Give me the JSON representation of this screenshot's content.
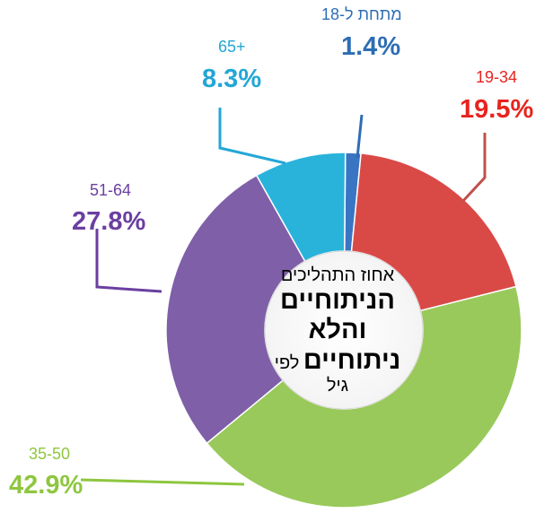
{
  "chart_data": {
    "type": "pie",
    "variant": "donut",
    "title_parts": {
      "line1": "אחוז התהליכים",
      "line2": "הניתוחיים",
      "line3": "והלא",
      "line4_bold": "ניתוחיים",
      "line4_regular": "לפי",
      "line5": "גיל"
    },
    "slices": [
      {
        "label": "מתחת ל-18",
        "value": 1.4,
        "value_label": "1.4%",
        "color": "#3a75c4"
      },
      {
        "label": "19-34",
        "value": 19.5,
        "value_label": "19.5%",
        "color": "#d94a47"
      },
      {
        "label": "35-50",
        "value": 42.9,
        "value_label": "42.9%",
        "color": "#99c95b"
      },
      {
        "label": "51-64",
        "value": 27.8,
        "value_label": "27.8%",
        "color": "#7f5fa8"
      },
      {
        "label": "65+",
        "value": 8.3,
        "value_label": "8.3%",
        "color": "#29b3da"
      }
    ],
    "label_colors": {
      "מתחת ל-18": "#2e6db4",
      "19-34": "#e8231e",
      "35-50": "#8ec63f",
      "51-64": "#6b3fa0",
      "65+": "#22a7d6"
    },
    "legend": "none"
  }
}
